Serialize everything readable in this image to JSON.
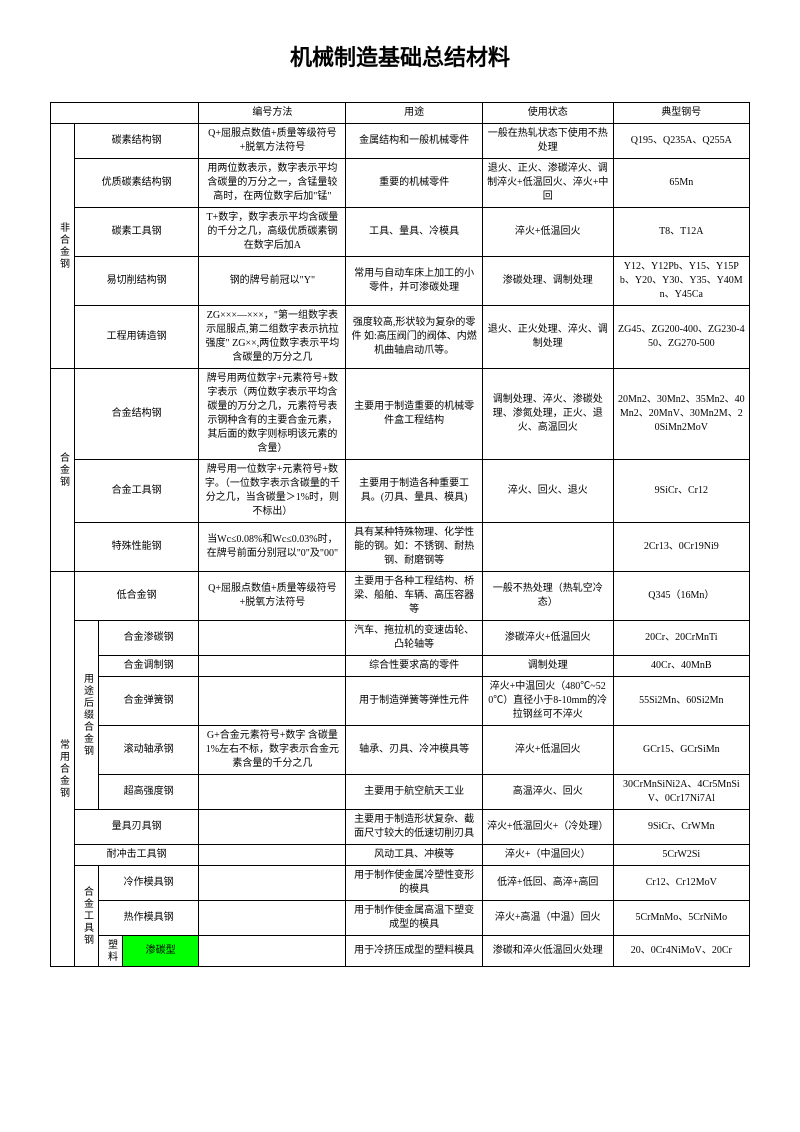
{
  "title": "机械制造基础总结材料",
  "headers": {
    "col_method": "编号方法",
    "col_use": "用途",
    "col_state": "使用状态",
    "col_model": "典型钢号"
  },
  "groups": {
    "nonalloy": "非合金钢",
    "alloy": "合金钢",
    "common_alloy": "常用合金钢",
    "use_suffix": "用途后缀合金钢",
    "alloy_tool": "合金工具钢",
    "plastic": "塑料"
  },
  "rows": {
    "r1": {
      "name": "碳素结构钢",
      "method": "Q+屈服点数值+质量等级符号+脱氧方法符号",
      "use": "金属结构和一般机械零件",
      "state": "一般在热轧状态下使用不热处理",
      "model": "Q195、Q235A、Q255A"
    },
    "r2": {
      "name": "优质碳素结构钢",
      "method": "用两位数表示，数字表示平均含碳量的万分之一，含锰量较高时，在两位数字后加\"锰\"",
      "use": "重要的机械零件",
      "state": "退火、正火、渗碳淬火、调制淬火+低温回火、淬火+中回",
      "model": "65Mn"
    },
    "r3": {
      "name": "碳素工具钢",
      "method": "T+数字，数字表示平均含碳量的千分之几，高级优质碳素钢在数字后加A",
      "use": "工具、量具、冷模具",
      "state": "淬火+低温回火",
      "model": "T8、T12A"
    },
    "r4": {
      "name": "易切削结构钢",
      "method": "钢的牌号前冠以\"Y\"",
      "use": "常用与自动车床上加工的小零件，并可渗碳处理",
      "state": "渗碳处理、调制处理",
      "model": "Y12、Y12Pb、Y15、Y15Pb、Y20、Y30、Y35、Y40Mn、Y45Ca"
    },
    "r5": {
      "name": "工程用铸造钢",
      "method": "ZG×××—×××，\"第一组数字表示屈服点,第二组数字表示抗拉强度\" ZG××,两位数字表示平均含碳量的万分之几",
      "use": "强度较高,形状较为复杂的零件 如:高压阀门的阀体、内燃机曲轴启动爪等。",
      "state": "退火、正火处理、淬火、调制处理",
      "model": "ZG45、ZG200-400、ZG230-450、ZG270-500"
    },
    "r6": {
      "name": "合金结构钢",
      "method": "牌号用两位数字+元素符号+数字表示（两位数字表示平均含碳量的万分之几，元素符号表示钢种含有的主要合金元素，其后面的数字则标明该元素的含量）",
      "use": "主要用于制造重要的机械零件盒工程结构",
      "state": "调制处理、淬火、渗碳处理、渗氮处理，正火、退火、高温回火",
      "model": "20Mn2、30Mn2、35Mn2、40Mn2、20MnV、30Mn2M、20SiMn2MoV"
    },
    "r7": {
      "name": "合金工具钢",
      "method": "牌号用一位数字+元素符号+数字。（一位数字表示含碳量的千分之几，当含碳量＞1%时，则不标出）",
      "use": "主要用于制造各种重要工具。(刃具、量具、模具)",
      "state": "淬火、回火、退火",
      "model": "9SiCr、Cr12"
    },
    "r8": {
      "name": "特殊性能钢",
      "method": "当Wc≤0.08%和Wc≤0.03%时，在牌号前面分别冠以\"0\"及\"00\"",
      "use": "具有某种特殊物理、化学性能的钢。如：不锈钢、耐热钢、耐磨钢等",
      "state": "",
      "model": "2Cr13、0Cr19Ni9"
    },
    "r9": {
      "name": "低合金钢",
      "method": "Q+屈服点数值+质量等级符号+脱氧方法符号",
      "use": "主要用于各种工程结构、桥梁、船舶、车辆、高压容器等",
      "state": "一般不热处理（热轧空冷态）",
      "model": "Q345（16Mn）"
    },
    "r10": {
      "name": "合金渗碳钢",
      "method": "",
      "use": "汽车、拖拉机的变速齿轮、凸轮轴等",
      "state": "渗碳淬火+低温回火",
      "model": "20Cr、20CrMnTi"
    },
    "r11": {
      "name": "合金调制钢",
      "method": "",
      "use": "综合性要求高的零件",
      "state": "调制处理",
      "model": "40Cr、40MnB"
    },
    "r12": {
      "name": "合金弹簧钢",
      "method": "",
      "use": "用于制造弹簧等弹性元件",
      "state": "淬火+中温回火（480℃~520℃）直径小于8-10mm的冷拉钢丝可不淬火",
      "model": "55Si2Mn、60Si2Mn"
    },
    "r13": {
      "name": "滚动轴承钢",
      "method": "G+合金元素符号+数字 含碳量1%左右不标，数字表示合金元素含量的千分之几",
      "use": "轴承、刃具、冷冲模具等",
      "state": "淬火+低温回火",
      "model": "GCr15、GCrSiMn"
    },
    "r14": {
      "name": "超高强度钢",
      "method": "",
      "use": "主要用于航空航天工业",
      "state": "高温淬火、回火",
      "model": "30CrMnSiNi2A、4Cr5MnSiV、0Cr17Ni7Al"
    },
    "r15": {
      "name": "量具刃具钢",
      "method": "",
      "use": "主要用于制造形状复杂、截面尺寸较大的低速切削刃具",
      "state": "淬火+低温回火+（冷处理）",
      "model": "9SiCr、CrWMn"
    },
    "r16": {
      "name": "耐冲击工具钢",
      "method": "",
      "use": "风动工具、冲模等",
      "state": "淬火+（中温回火）",
      "model": "5CrW2Si"
    },
    "r17": {
      "name": "冷作模具钢",
      "method": "",
      "use": "用于制作使金属冷塑性变形的模具",
      "state": "低淬+低回、高淬+高回",
      "model": "Cr12、Cr12MoV"
    },
    "r18": {
      "name": "热作模具钢",
      "method": "",
      "use": "用于制作使金属高温下塑变成型的模具",
      "state": "淬火+高温（中温）回火",
      "model": "5CrMnMo、5CrNiMo"
    },
    "r19": {
      "name": "渗碳型",
      "method": "",
      "use": "用于冷挤压成型的塑料模具",
      "state": "渗碳和淬火低温回火处理",
      "model": "20、0Cr4NiMoV、20Cr"
    }
  }
}
